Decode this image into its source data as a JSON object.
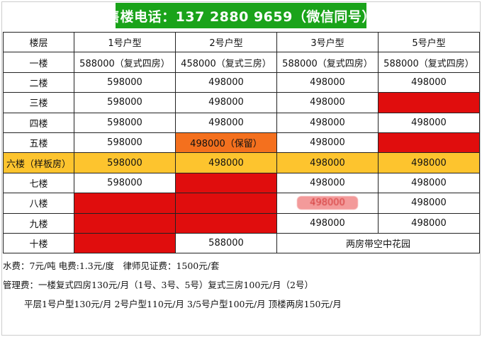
{
  "banner": "售楼电话：137 2880 9659（微信同号）",
  "table": {
    "headers": [
      "楼层",
      "1号户型",
      "2号户型",
      "3号户型",
      "5号户型"
    ],
    "rows": [
      {
        "floor": "一楼",
        "cells": [
          {
            "text": "588000（复式四房）",
            "status": "available"
          },
          {
            "text": "458000（复式三房）",
            "status": "available"
          },
          {
            "text": "588000（复式四房）",
            "status": "available"
          },
          {
            "text": "588000（复式四房）",
            "status": "available"
          }
        ]
      },
      {
        "floor": "二楼",
        "cells": [
          {
            "text": "598000",
            "status": "available"
          },
          {
            "text": "498000",
            "status": "available"
          },
          {
            "text": "498000",
            "status": "available"
          },
          {
            "text": "498000",
            "status": "available"
          }
        ]
      },
      {
        "floor": "三楼",
        "cells": [
          {
            "text": "598000",
            "status": "available"
          },
          {
            "text": "498000",
            "status": "available"
          },
          {
            "text": "498000",
            "status": "available"
          },
          {
            "text": "",
            "status": "sold"
          }
        ]
      },
      {
        "floor": "四楼",
        "cells": [
          {
            "text": "598000",
            "status": "available"
          },
          {
            "text": "498000",
            "status": "available"
          },
          {
            "text": "498000",
            "status": "available"
          },
          {
            "text": "498000",
            "status": "available"
          }
        ]
      },
      {
        "floor": "五楼",
        "cells": [
          {
            "text": "598000",
            "status": "available"
          },
          {
            "text": "498000（保留）",
            "status": "reserved"
          },
          {
            "text": "498000",
            "status": "available"
          },
          {
            "text": "",
            "status": "sold"
          }
        ]
      },
      {
        "floor": "六楼（样板房）",
        "highlight": true,
        "cells": [
          {
            "text": "598000",
            "status": "model"
          },
          {
            "text": "498000",
            "status": "model"
          },
          {
            "text": "498000",
            "status": "model"
          },
          {
            "text": "498000",
            "status": "model"
          }
        ]
      },
      {
        "floor": "七楼",
        "cells": [
          {
            "text": "598000",
            "status": "available"
          },
          {
            "text": "",
            "status": "sold"
          },
          {
            "text": "498000",
            "status": "available"
          },
          {
            "text": "498000",
            "status": "available"
          }
        ]
      },
      {
        "floor": "八楼",
        "cells": [
          {
            "text": "",
            "status": "sold"
          },
          {
            "text": "",
            "status": "sold"
          },
          {
            "text": "498000",
            "status": "blurred"
          },
          {
            "text": "498000",
            "status": "available"
          }
        ]
      },
      {
        "floor": "九楼",
        "cells": [
          {
            "text": "",
            "status": "sold"
          },
          {
            "text": "",
            "status": "sold"
          },
          {
            "text": "498000",
            "status": "available"
          },
          {
            "text": "498000",
            "status": "available"
          }
        ]
      },
      {
        "floor": "十楼",
        "cells": [
          {
            "text": "",
            "status": "sold"
          },
          {
            "text": "588000",
            "status": "available"
          },
          {
            "text": "两房带空中花园",
            "status": "available",
            "colspan": 2
          }
        ]
      }
    ]
  },
  "notes": [
    "水费：7元/吨 电费:1.3元/度　律师见证费：1500元/套",
    "管理费：一楼复式四房130元/月（1号、3号、5号）复式三房100元/月（2号）",
    "平层1号户型130元/月 2号户型110元/月 3/5号户型100元/月 顶楼两房150元/月"
  ],
  "colors": {
    "banner": "#1aa31a",
    "sold": "#e00d0d",
    "reserved": "#f4701e",
    "model_row": "#fdc42e"
  }
}
